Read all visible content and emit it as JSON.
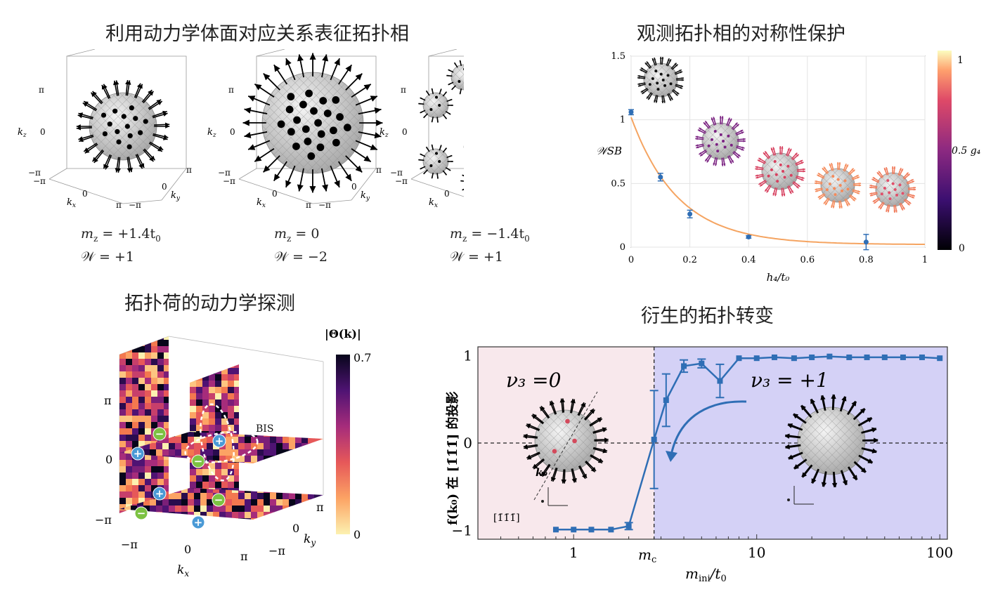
{
  "panels": {
    "top_left": {
      "title": "利用动力学体面对应关系表征拓扑相",
      "tick_pi": "π",
      "tick_zero": "0",
      "tick_neg_pi": "−π",
      "axis_kx": "k",
      "axis_ky": "k",
      "axis_kz": "k",
      "cases": [
        {
          "mz": "m",
          "mz_value": " = +1.4t",
          "w_value": "𝒲 = +1"
        },
        {
          "mz": "m",
          "mz_value": " = 0",
          "w_value": "𝒲 = −2"
        },
        {
          "mz": "m",
          "mz_value": " = −1.4t",
          "w_value": "𝒲 = +1"
        }
      ]
    },
    "top_right": {
      "title": "观测拓扑相的对称性保护",
      "xlabel": "h₄/t₀",
      "ylabel": "𝒲SB",
      "colorbar_label": "0.5 g₄",
      "colorbar_top": "1",
      "colorbar_bottom": "0"
    },
    "bottom_left": {
      "title": "拓扑荷的动力学探测",
      "colorbar_title": "|Θ(k)|",
      "colorbar_top": "0.7",
      "colorbar_bottom": "0",
      "bis_label": "BIS",
      "tick_pi": "π",
      "tick_zero": "0",
      "tick_neg_pi": "−π",
      "axis_kx": "k",
      "axis_ky": "k"
    },
    "bottom_right": {
      "title": "衍生的拓扑转变",
      "xlabel": "m",
      "ylabel": "f(k₀) 在 [1̄1̄1̄] 的投影",
      "mc_label": "m",
      "left_phase": "ν₃ =0",
      "right_phase": "ν₃ = +1",
      "k0_label": "k₀",
      "dir_label": "[1̄1̄1̄]"
    }
  },
  "chart_data": [
    {
      "type": "scatter",
      "title": "观测拓扑相的对称性保护",
      "xlabel": "h₄/t₀",
      "ylabel": "𝒲SB",
      "xlim": [
        0,
        1
      ],
      "ylim": [
        0,
        1.5
      ],
      "xticks": [
        "0",
        "0.2",
        "0.4",
        "0.6",
        "0.8",
        "1"
      ],
      "yticks": [
        "0",
        "0.5",
        "1",
        "1.5"
      ],
      "grid": true,
      "series": [
        {
          "x": [
            0,
            0.1,
            0.2,
            0.4,
            0.8
          ],
          "y": [
            1.06,
            0.55,
            0.26,
            0.08,
            0.04
          ],
          "err": [
            0.02,
            0.03,
            0.03,
            0.01,
            0.06
          ],
          "color": "#2f6eb5"
        }
      ],
      "fit_color": "#f5a461"
    },
    {
      "type": "line",
      "title": "衍生的拓扑转变",
      "xscale": "log",
      "xlim": [
        0.3,
        110
      ],
      "ylim": [
        -1.1,
        1.1
      ],
      "xticks": [
        "1",
        "10",
        "100"
      ],
      "yticks": [
        "−1",
        "0",
        "1"
      ],
      "series": [
        {
          "x": [
            0.8,
            1.0,
            1.25,
            1.6,
            2.0,
            2.75,
            3.2,
            4.0,
            5.0,
            6.3,
            8.0,
            10,
            12.5,
            16,
            20,
            25,
            32,
            40,
            50,
            63,
            80,
            100
          ],
          "y": [
            -0.99,
            -0.99,
            -0.99,
            -0.99,
            -0.95,
            0.04,
            0.49,
            0.88,
            0.91,
            0.71,
            0.97,
            0.97,
            0.98,
            0.97,
            0.98,
            0.99,
            0.98,
            0.98,
            0.98,
            0.98,
            0.98,
            0.97
          ],
          "err": [
            0.01,
            0.01,
            0.01,
            0.01,
            0.04,
            0.56,
            0.3,
            0.07,
            0.05,
            0.19,
            0.02,
            0.01,
            0.01,
            0.02,
            0.01,
            0.01,
            0.01,
            0.01,
            0.01,
            0.01,
            0.01,
            0.01
          ],
          "color": "#2f6eb5"
        }
      ],
      "mc": 2.75,
      "left_color": "#f8e8ec",
      "right_color": "#d4d1f6"
    }
  ]
}
